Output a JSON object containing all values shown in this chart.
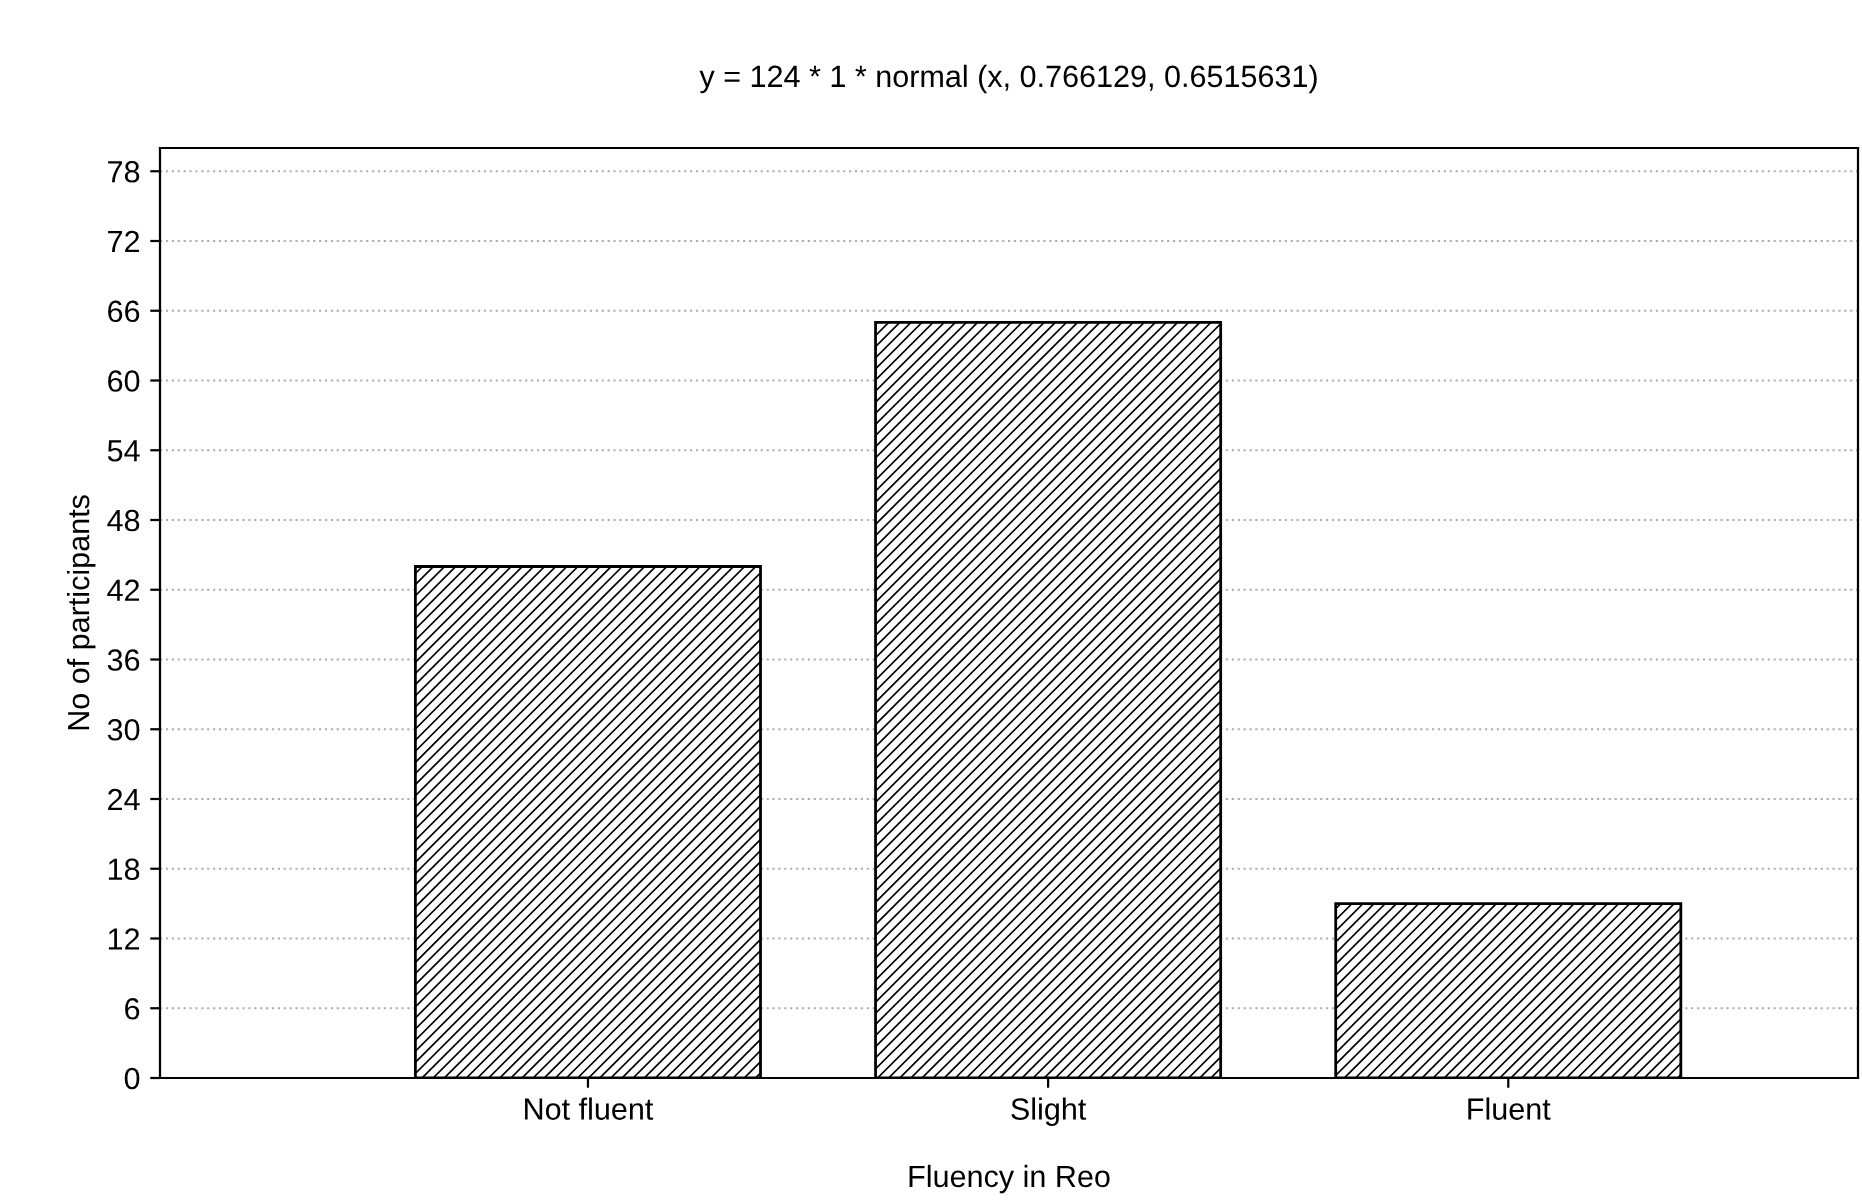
{
  "chart_data": {
    "type": "bar",
    "title": "y = 124 * 1 * normal (x, 0.766129, 0.6515631)",
    "xlabel": "Fluency in Reo",
    "ylabel": "No of participants",
    "categories": [
      "Not fluent",
      "Slight",
      "Fluent"
    ],
    "values": [
      44,
      65,
      15
    ],
    "color": "#000000",
    "ylim": [
      0,
      80
    ],
    "yticks": [
      0,
      6,
      12,
      18,
      24,
      30,
      36,
      42,
      48,
      54,
      60,
      66,
      72,
      78
    ],
    "grid": "y"
  }
}
